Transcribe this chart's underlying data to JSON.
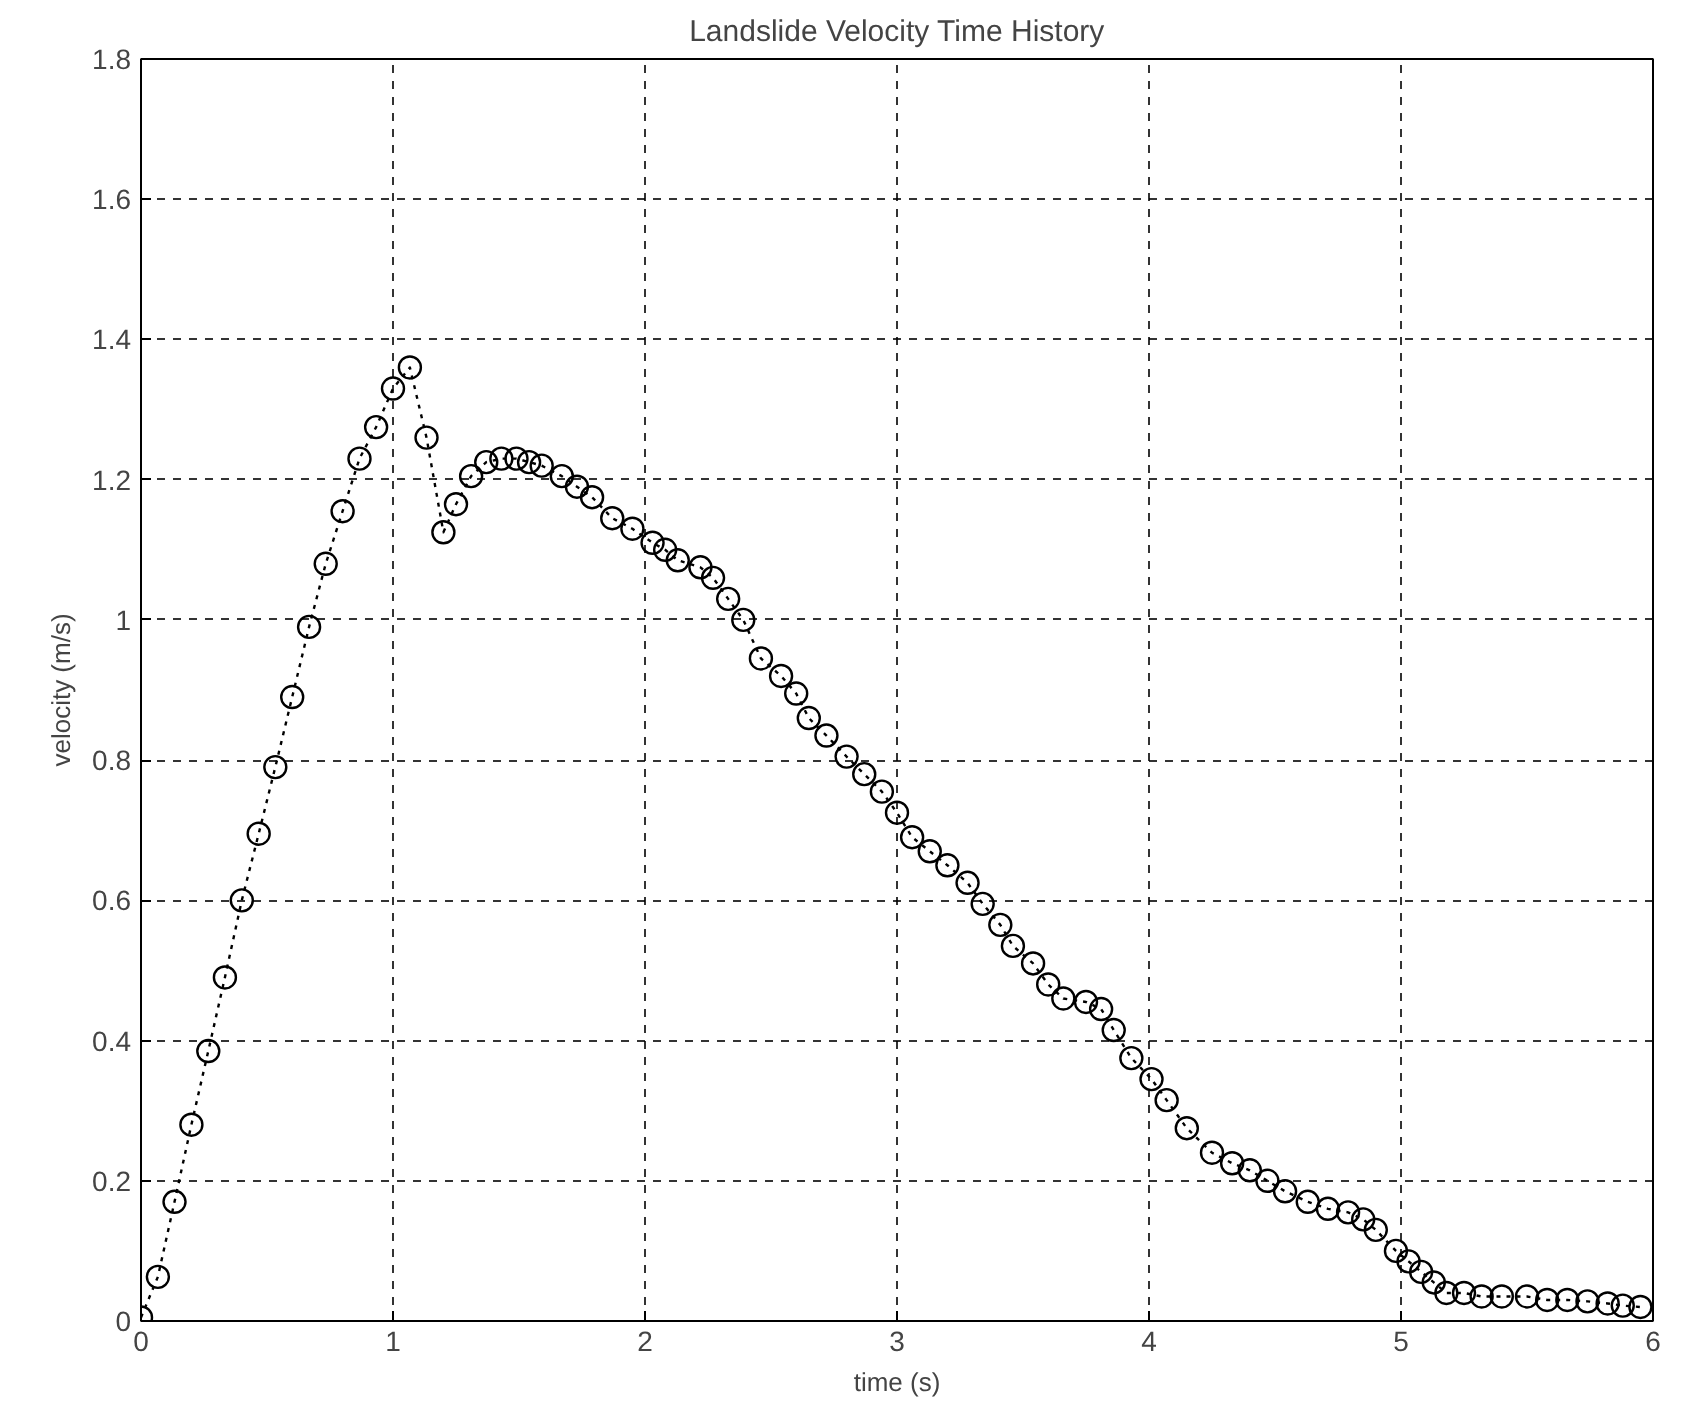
{
  "chart_data": {
    "type": "line",
    "title": "Landslide Velocity Time History",
    "xlabel": "time (s)",
    "ylabel": "velocity (m/s)",
    "x": [
      0,
      0.067,
      0.133,
      0.2,
      0.267,
      0.333,
      0.4,
      0.467,
      0.533,
      0.6,
      0.667,
      0.733,
      0.8,
      0.867,
      0.933,
      1.0,
      1.067,
      1.133,
      1.2,
      1.25,
      1.31,
      1.37,
      1.43,
      1.49,
      1.54,
      1.59,
      1.67,
      1.73,
      1.79,
      1.87,
      1.95,
      2.03,
      2.08,
      2.13,
      2.22,
      2.27,
      2.33,
      2.39,
      2.46,
      2.54,
      2.6,
      2.65,
      2.72,
      2.8,
      2.87,
      2.94,
      3.0,
      3.06,
      3.13,
      3.2,
      3.28,
      3.34,
      3.41,
      3.46,
      3.54,
      3.6,
      3.66,
      3.75,
      3.81,
      3.86,
      3.93,
      4.01,
      4.07,
      4.15,
      4.25,
      4.33,
      4.4,
      4.47,
      4.54,
      4.63,
      4.71,
      4.79,
      4.85,
      4.9,
      4.98,
      5.03,
      5.08,
      5.13,
      5.18,
      5.25,
      5.32,
      5.4,
      5.5,
      5.58,
      5.66,
      5.74,
      5.82,
      5.88,
      5.95
    ],
    "series": [
      {
        "color": "#000000",
        "values": [
          0.005,
          0.063,
          0.17,
          0.28,
          0.385,
          0.49,
          0.6,
          0.695,
          0.79,
          0.89,
          0.99,
          1.08,
          1.155,
          1.23,
          1.275,
          1.33,
          1.36,
          1.26,
          1.125,
          1.165,
          1.205,
          1.225,
          1.23,
          1.23,
          1.225,
          1.22,
          1.205,
          1.19,
          1.175,
          1.145,
          1.13,
          1.11,
          1.1,
          1.085,
          1.075,
          1.06,
          1.03,
          1.0,
          0.945,
          0.92,
          0.895,
          0.86,
          0.835,
          0.805,
          0.78,
          0.755,
          0.725,
          0.69,
          0.67,
          0.65,
          0.625,
          0.595,
          0.565,
          0.535,
          0.51,
          0.48,
          0.46,
          0.455,
          0.445,
          0.415,
          0.375,
          0.345,
          0.315,
          0.275,
          0.24,
          0.225,
          0.215,
          0.2,
          0.185,
          0.17,
          0.16,
          0.155,
          0.145,
          0.13,
          0.1,
          0.085,
          0.07,
          0.055,
          0.04,
          0.04,
          0.035,
          0.035,
          0.035,
          0.03,
          0.03,
          0.028,
          0.025,
          0.022,
          0.02
        ]
      }
    ],
    "xlim": [
      0,
      6
    ],
    "xticks": [
      0,
      1,
      2,
      3,
      4,
      5,
      6
    ],
    "ylim": [
      0,
      1.8
    ],
    "yticks": [
      0,
      0.2,
      0.4,
      0.6,
      0.8,
      1,
      1.2,
      1.4,
      1.6,
      1.8
    ],
    "grid": true,
    "marker": "circle",
    "line_style": "dotted"
  }
}
